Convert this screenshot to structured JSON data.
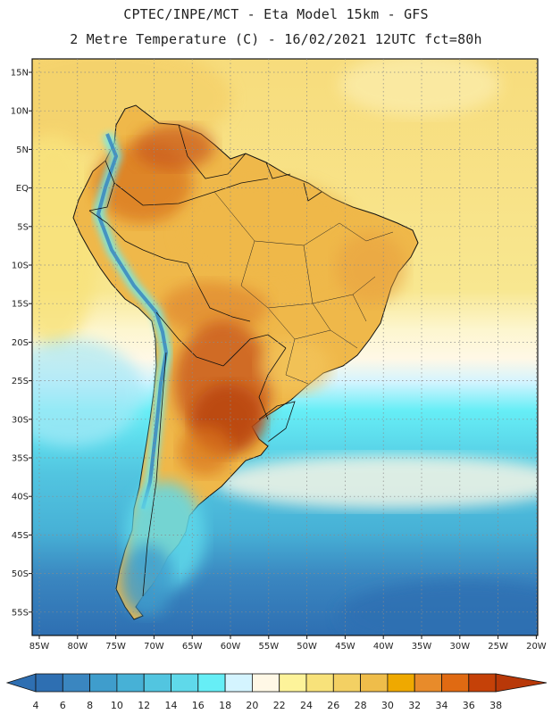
{
  "header": {
    "line1": "CPTEC/INPE/MCT -  Eta Model 15km - GFS",
    "line2": "2 Metre Temperature (C) - 16/02/2021 12UTC fct=80h"
  },
  "map": {
    "lat_labels": [
      "15N",
      "10N",
      "5N",
      "EQ",
      "5S",
      "10S",
      "15S",
      "20S",
      "25S",
      "30S",
      "35S",
      "40S",
      "45S",
      "50S",
      "55S"
    ],
    "lon_labels": [
      "85W",
      "80W",
      "75W",
      "70W",
      "65W",
      "60W",
      "55W",
      "50W",
      "45W",
      "40W",
      "35W",
      "30W",
      "25W",
      "20W"
    ]
  },
  "colorbar": {
    "levels": [
      "4",
      "6",
      "8",
      "10",
      "12",
      "14",
      "16",
      "18",
      "20",
      "22",
      "24",
      "26",
      "28",
      "30",
      "32",
      "34",
      "36",
      "38"
    ],
    "colors": [
      "#2e6fb2",
      "#3a86c0",
      "#3f9dcc",
      "#47b1d6",
      "#52c5e0",
      "#5fd9ea",
      "#66eef6",
      "#d4f4ff",
      "#fff8e6",
      "#fdf39a",
      "#f8e27a",
      "#f3d063",
      "#efbd4a",
      "#efa900",
      "#e88b2a",
      "#e06a12",
      "#c54108",
      "#b83808"
    ]
  }
}
